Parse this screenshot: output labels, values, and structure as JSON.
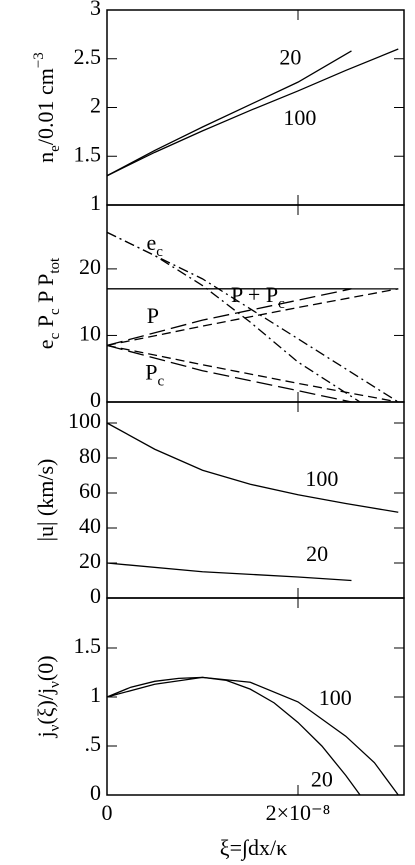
{
  "chart_data": [
    {
      "type": "line",
      "ylim": [
        1,
        3
      ],
      "yticks": [
        1,
        1.5,
        2,
        2.5,
        3
      ],
      "xlim": [
        0,
        3.11e-08
      ],
      "ylabel": [
        {
          "text": "n"
        },
        {
          "text": "e",
          "sub": true
        },
        {
          "text": "/0.01  cm"
        },
        {
          "text": "−3",
          "sup": true
        }
      ],
      "series": [
        {
          "color": "#000",
          "dash": "solid",
          "x": [
            0,
            5e-09,
            1e-08,
            1.5e-08,
            2e-08,
            2.56e-08
          ],
          "values": [
            1.3,
            1.56,
            1.8,
            2.03,
            2.26,
            2.58
          ]
        },
        {
          "color": "#000",
          "dash": "solid",
          "x": [
            0,
            5e-09,
            1e-08,
            1.5e-08,
            2e-08,
            2.5e-08,
            3.05e-08
          ],
          "values": [
            1.3,
            1.54,
            1.76,
            1.97,
            2.17,
            2.38,
            2.6
          ]
        }
      ],
      "annotations": [
        {
          "x": 1.92e-08,
          "y": 2.49,
          "parts": [
            {
              "text": "20"
            }
          ]
        },
        {
          "x": 2.02e-08,
          "y": 1.87,
          "parts": [
            {
              "text": "100"
            }
          ]
        }
      ]
    },
    {
      "type": "line",
      "ylim": [
        0,
        29.6
      ],
      "yticks": [
        0,
        10,
        20
      ],
      "xlim": [
        0,
        3.11e-08
      ],
      "ylabel": [
        {
          "text": "e"
        },
        {
          "text": "c",
          "sub": true
        },
        {
          "text": " P"
        },
        {
          "text": "c",
          "sub": true
        },
        {
          "text": " P P"
        },
        {
          "text": "tot",
          "sub": true
        }
      ],
      "series": [
        {
          "color": "#000",
          "dash": "solid",
          "x": [
            0,
            2.56e-08
          ],
          "values": [
            17,
            17
          ]
        },
        {
          "color": "#000",
          "dash": "solid",
          "x": [
            0,
            3.05e-08
          ],
          "values": [
            17,
            17
          ]
        },
        {
          "color": "#000",
          "dash": "longdash",
          "x": [
            0,
            1e-08,
            2e-08,
            2.56e-08
          ],
          "values": [
            8.5,
            12.3,
            15.3,
            17
          ]
        },
        {
          "color": "#000",
          "dash": "dashed",
          "x": [
            0,
            1e-08,
            2e-08,
            3.05e-08
          ],
          "values": [
            8.5,
            11.4,
            14.2,
            17
          ]
        },
        {
          "color": "#000",
          "dash": "longdash",
          "x": [
            0,
            1e-08,
            2e-08,
            2.56e-08
          ],
          "values": [
            8.5,
            4.7,
            1.7,
            0
          ]
        },
        {
          "color": "#000",
          "dash": "dashed",
          "x": [
            0,
            1e-08,
            2e-08,
            3.05e-08
          ],
          "values": [
            8.5,
            5.6,
            2.8,
            0
          ]
        },
        {
          "color": "#000",
          "dash": "dashdot",
          "x": [
            0,
            5e-09,
            1e-08,
            1.5e-08,
            2e-08,
            2.65e-08
          ],
          "values": [
            25.5,
            22,
            17.5,
            12,
            6,
            0
          ]
        },
        {
          "color": "#000",
          "dash": "dashdot",
          "x": [
            0,
            1e-08,
            2e-08,
            3.05e-08
          ],
          "values": [
            25.5,
            18.5,
            9.5,
            0
          ]
        }
      ],
      "annotations": [
        {
          "x": 5e-09,
          "y": 23.6,
          "parts": [
            {
              "text": "e"
            },
            {
              "text": "c",
              "sub": true
            }
          ]
        },
        {
          "x": 1.58e-08,
          "y": 15.8,
          "parts": [
            {
              "text": "P + P"
            },
            {
              "text": "c",
              "sub": true
            }
          ]
        },
        {
          "x": 4.8e-09,
          "y": 12.6,
          "parts": [
            {
              "text": "P"
            }
          ]
        },
        {
          "x": 5e-09,
          "y": 4.1,
          "parts": [
            {
              "text": "P"
            },
            {
              "text": "c",
              "sub": true
            }
          ]
        }
      ]
    },
    {
      "type": "line",
      "ylim": [
        0,
        112
      ],
      "yticks": [
        0,
        20,
        40,
        60,
        80,
        100
      ],
      "xlim": [
        0,
        3.11e-08
      ],
      "ylabel": [
        {
          "text": "|u|  (km/s)"
        }
      ],
      "series": [
        {
          "color": "#000",
          "dash": "solid",
          "x": [
            0,
            5e-09,
            1e-08,
            1.5e-08,
            2e-08,
            2.5e-08,
            3.05e-08
          ],
          "values": [
            100,
            85,
            73,
            65,
            59,
            54,
            49
          ]
        },
        {
          "color": "#000",
          "dash": "solid",
          "x": [
            0,
            1e-08,
            2e-08,
            2.56e-08
          ],
          "values": [
            20,
            15,
            12,
            10
          ]
        }
      ],
      "annotations": [
        {
          "x": 2.25e-08,
          "y": 67,
          "parts": [
            {
              "text": "100"
            }
          ]
        },
        {
          "x": 2.2e-08,
          "y": 24,
          "parts": [
            {
              "text": "20"
            }
          ]
        }
      ]
    },
    {
      "type": "line",
      "ylim": [
        0,
        2.01
      ],
      "yticks": [
        0,
        {
          "value": 0.5,
          "label": ".5"
        },
        1,
        1.5
      ],
      "xlim": [
        0,
        3.11e-08
      ],
      "xticks": [
        0,
        {
          "value": 2e-08,
          "label": "2×10⁻⁸"
        }
      ],
      "xlabel": "ξ=∫dx/κ",
      "ylabel": [
        {
          "text": "j"
        },
        {
          "text": "ν",
          "sub": true
        },
        {
          "text": "(ξ)/j"
        },
        {
          "text": "ν",
          "sub": true
        },
        {
          "text": "(0)"
        }
      ],
      "series": [
        {
          "color": "#000",
          "dash": "solid",
          "x": [
            0,
            2.5e-09,
            5e-09,
            7.5e-09,
            1e-08,
            1.25e-08,
            1.5e-08,
            1.75e-08,
            2e-08,
            2.25e-08,
            2.5e-08,
            2.65e-08
          ],
          "values": [
            1,
            1.1,
            1.16,
            1.19,
            1.2,
            1.17,
            1.08,
            0.94,
            0.74,
            0.5,
            0.2,
            0
          ]
        },
        {
          "color": "#000",
          "dash": "solid",
          "x": [
            0,
            5e-09,
            1e-08,
            1.5e-08,
            2e-08,
            2.5e-08,
            2.8e-08,
            3.05e-08
          ],
          "values": [
            1,
            1.13,
            1.2,
            1.15,
            0.95,
            0.6,
            0.33,
            0
          ]
        }
      ],
      "annotations": [
        {
          "x": 2.39e-08,
          "y": 0.97,
          "parts": [
            {
              "text": "100"
            }
          ]
        },
        {
          "x": 2.25e-08,
          "y": 0.14,
          "parts": [
            {
              "text": "20"
            }
          ]
        }
      ]
    }
  ]
}
